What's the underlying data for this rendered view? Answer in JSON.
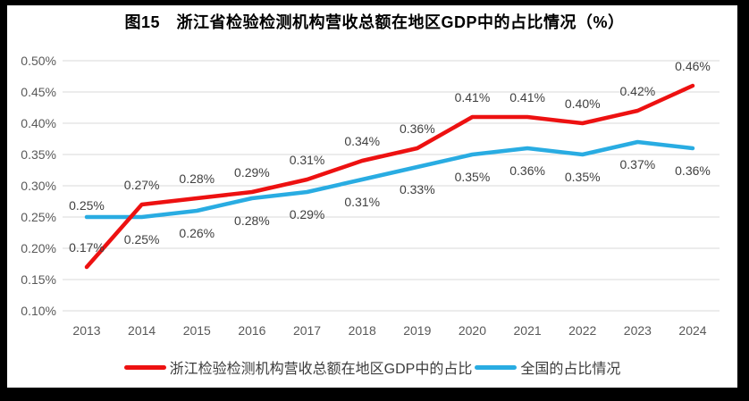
{
  "title": "图15　浙江省检验检测机构营收总额在地区GDP中的占比情况（%）",
  "chart_data": {
    "type": "line",
    "x": [
      "2013",
      "2014",
      "2015",
      "2016",
      "2017",
      "2018",
      "2019",
      "2020",
      "2021",
      "2022",
      "2023",
      "2024"
    ],
    "ylim": [
      0.1,
      0.5
    ],
    "y_ticks": [
      "0.50%",
      "0.45%",
      "0.40%",
      "0.35%",
      "0.30%",
      "0.25%",
      "0.20%",
      "0.15%",
      "0.10%"
    ],
    "grid": true,
    "legend_position": "bottom",
    "series": [
      {
        "id": "zhejiang",
        "name": "浙江检验检测机构营收总额在地区GDP中的占比",
        "color": "#ED1111",
        "values": [
          0.17,
          0.27,
          0.28,
          0.29,
          0.31,
          0.34,
          0.36,
          0.41,
          0.41,
          0.4,
          0.42,
          0.46
        ],
        "labels": [
          "0.17%",
          "0.27%",
          "0.28%",
          "0.29%",
          "0.31%",
          "0.34%",
          "0.36%",
          "0.41%",
          "0.41%",
          "0.40%",
          "0.42%",
          "0.46%"
        ],
        "label_side": [
          "above",
          "above",
          "above",
          "above",
          "above",
          "above",
          "above",
          "above",
          "above",
          "above",
          "above",
          "above"
        ]
      },
      {
        "id": "national",
        "name": "全国的占比情况",
        "color": "#29ACE2",
        "values": [
          0.25,
          0.25,
          0.26,
          0.28,
          0.29,
          0.31,
          0.33,
          0.35,
          0.36,
          0.35,
          0.37,
          0.36
        ],
        "labels": [
          "0.25%",
          "0.25%",
          "0.26%",
          "0.28%",
          "0.29%",
          "0.31%",
          "0.33%",
          "0.35%",
          "0.36%",
          "0.35%",
          "0.37%",
          "0.36%"
        ],
        "label_side": [
          "above-tight",
          "below",
          "below",
          "below",
          "below",
          "below",
          "below",
          "below",
          "below",
          "below",
          "below",
          "below"
        ]
      }
    ],
    "colors": {
      "gridline": "#D9D9D9",
      "axis_text": "#595959",
      "data_label": "#404040",
      "title_text": "#000000"
    }
  }
}
